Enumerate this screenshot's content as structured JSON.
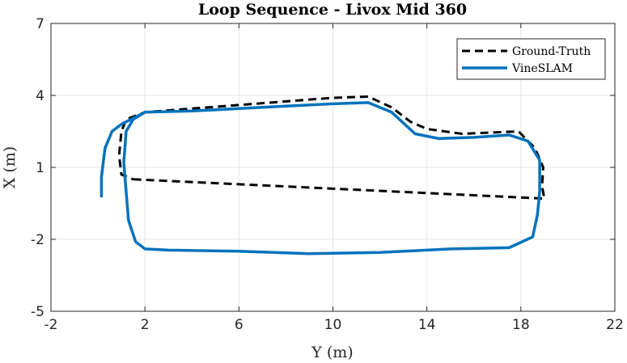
{
  "chart_data": {
    "type": "line",
    "title": "Loop Sequence - Livox Mid 360",
    "xlabel": "Y (m)",
    "ylabel": "X (m)",
    "xlim": [
      -2,
      22
    ],
    "ylim": [
      -5,
      7
    ],
    "xticks": [
      -2,
      2,
      6,
      10,
      14,
      18,
      22
    ],
    "yticks": [
      -5,
      -2,
      1,
      4,
      7
    ],
    "grid": true,
    "legend_position": "top-right",
    "series": [
      {
        "name": "Ground-Truth",
        "color": "#000000",
        "style": "dashed",
        "points": [
          [
            1.5,
            0.5
          ],
          [
            19.0,
            -0.3
          ],
          [
            18.9,
            0.2
          ],
          [
            18.95,
            1.0
          ],
          [
            18.6,
            1.8
          ],
          [
            17.9,
            2.5
          ],
          [
            15.5,
            2.4
          ],
          [
            14.0,
            2.6
          ],
          [
            13.3,
            2.9
          ],
          [
            12.5,
            3.5
          ],
          [
            11.5,
            3.95
          ],
          [
            10.0,
            3.9
          ],
          [
            8.0,
            3.75
          ],
          [
            6.0,
            3.6
          ],
          [
            4.0,
            3.45
          ],
          [
            2.0,
            3.3
          ],
          [
            1.2,
            3.0
          ],
          [
            1.0,
            2.5
          ],
          [
            0.9,
            1.5
          ],
          [
            1.0,
            0.7
          ],
          [
            1.5,
            0.5
          ]
        ]
      },
      {
        "name": "VineSLAM",
        "color": "#0072BD",
        "style": "solid",
        "points": [
          [
            0.15,
            -0.2
          ],
          [
            0.15,
            0.6
          ],
          [
            0.3,
            1.8
          ],
          [
            0.6,
            2.5
          ],
          [
            1.0,
            2.8
          ],
          [
            2.0,
            3.3
          ],
          [
            4.0,
            3.35
          ],
          [
            6.0,
            3.45
          ],
          [
            8.0,
            3.55
          ],
          [
            10.0,
            3.65
          ],
          [
            11.5,
            3.7
          ],
          [
            12.5,
            3.3
          ],
          [
            13.5,
            2.4
          ],
          [
            14.5,
            2.2
          ],
          [
            16.0,
            2.25
          ],
          [
            17.5,
            2.35
          ],
          [
            18.3,
            2.1
          ],
          [
            18.8,
            1.3
          ],
          [
            18.8,
            0.0
          ],
          [
            18.7,
            -1.0
          ],
          [
            18.5,
            -1.9
          ],
          [
            17.5,
            -2.35
          ],
          [
            15.0,
            -2.4
          ],
          [
            12.0,
            -2.55
          ],
          [
            9.0,
            -2.6
          ],
          [
            6.0,
            -2.5
          ],
          [
            3.0,
            -2.45
          ],
          [
            2.0,
            -2.4
          ],
          [
            1.6,
            -2.1
          ],
          [
            1.3,
            -1.2
          ],
          [
            1.2,
            0.0
          ],
          [
            1.1,
            1.2
          ],
          [
            1.2,
            2.5
          ],
          [
            1.5,
            3.0
          ],
          [
            2.0,
            3.3
          ]
        ]
      }
    ]
  }
}
